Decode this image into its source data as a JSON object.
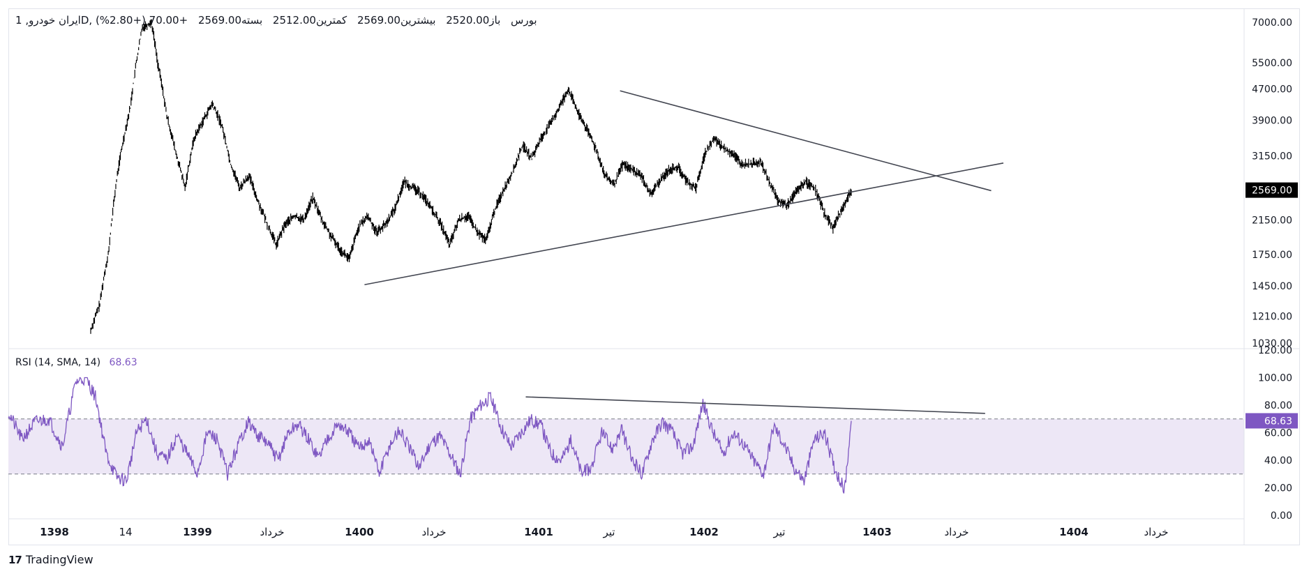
{
  "header": {
    "symbol": "ایران خودرو, 1D, بورس",
    "open_label": "باز",
    "open": "2520.00",
    "high_label": "بیشترین",
    "high": "2569.00",
    "low_label": "کمترین",
    "low": "2512.00",
    "close_label": "بسته",
    "close": "2569.00",
    "change": "+70.00 (+2.80%)"
  },
  "rsi_header": {
    "label": "RSI (14, SMA, 14)",
    "value": "68.63"
  },
  "brand": {
    "logo": "17",
    "name": "TradingView"
  },
  "colors": {
    "candle": "#000000",
    "rsi": "#7e57c2",
    "band": "#ede7f6",
    "trendline": "#434651",
    "price_badge": "#000000",
    "rsi_badge": "#7e57c2"
  },
  "chart_data": [
    {
      "type": "candlestick",
      "scale": "log",
      "price_axis_ticks": [
        "7000.00",
        "5500.00",
        "4700.00",
        "3900.00",
        "3150.00",
        "2150.00",
        "1750.00",
        "1450.00",
        "1210.00",
        "1030.00"
      ],
      "last_price_label": "2569.00",
      "time_axis_labels": [
        {
          "label": "1398",
          "bold": true
        },
        {
          "label": "14",
          "bold": false
        },
        {
          "label": "1399",
          "bold": true
        },
        {
          "label": "خرداد",
          "bold": false
        },
        {
          "label": "1400",
          "bold": true
        },
        {
          "label": "خرداد",
          "bold": false
        },
        {
          "label": "1401",
          "bold": true
        },
        {
          "label": "تیر",
          "bold": false
        },
        {
          "label": "1402",
          "bold": true
        },
        {
          "label": "تیر",
          "bold": false
        },
        {
          "label": "1403",
          "bold": true
        },
        {
          "label": "خرداد",
          "bold": false
        },
        {
          "label": "1404",
          "bold": true
        },
        {
          "label": "خرداد",
          "bold": false
        }
      ],
      "price_path": [
        [
          0,
          1110
        ],
        [
          0.3,
          1300
        ],
        [
          0.6,
          1800
        ],
        [
          0.9,
          2900
        ],
        [
          1.3,
          4200
        ],
        [
          1.7,
          6800
        ],
        [
          2.0,
          7000
        ],
        [
          2.2,
          5500
        ],
        [
          2.5,
          4000
        ],
        [
          2.8,
          3200
        ],
        [
          3.1,
          2600
        ],
        [
          3.4,
          3500
        ],
        [
          3.7,
          3900
        ],
        [
          4.0,
          4300
        ],
        [
          4.3,
          3800
        ],
        [
          4.6,
          3000
        ],
        [
          4.9,
          2600
        ],
        [
          5.2,
          2800
        ],
        [
          5.5,
          2400
        ],
        [
          5.8,
          2100
        ],
        [
          6.1,
          1850
        ],
        [
          6.4,
          2100
        ],
        [
          6.7,
          2200
        ],
        [
          7.0,
          2150
        ],
        [
          7.3,
          2450
        ],
        [
          7.6,
          2150
        ],
        [
          7.9,
          1950
        ],
        [
          8.2,
          1800
        ],
        [
          8.5,
          1700
        ],
        [
          8.8,
          2050
        ],
        [
          9.1,
          2200
        ],
        [
          9.4,
          2000
        ],
        [
          9.7,
          2100
        ],
        [
          10.0,
          2300
        ],
        [
          10.3,
          2700
        ],
        [
          10.6,
          2600
        ],
        [
          10.9,
          2500
        ],
        [
          11.2,
          2300
        ],
        [
          11.5,
          2100
        ],
        [
          11.8,
          1850
        ],
        [
          12.1,
          2150
        ],
        [
          12.4,
          2200
        ],
        [
          12.7,
          2000
        ],
        [
          13.0,
          1900
        ],
        [
          13.3,
          2300
        ],
        [
          13.6,
          2600
        ],
        [
          13.9,
          2900
        ],
        [
          14.2,
          3350
        ],
        [
          14.5,
          3100
        ],
        [
          14.8,
          3500
        ],
        [
          15.1,
          3800
        ],
        [
          15.4,
          4200
        ],
        [
          15.7,
          4700
        ],
        [
          16.0,
          4100
        ],
        [
          16.3,
          3700
        ],
        [
          16.6,
          3300
        ],
        [
          16.9,
          2800
        ],
        [
          17.2,
          2650
        ],
        [
          17.5,
          3000
        ],
        [
          17.8,
          2900
        ],
        [
          18.1,
          2800
        ],
        [
          18.4,
          2500
        ],
        [
          18.7,
          2700
        ],
        [
          19.0,
          2900
        ],
        [
          19.3,
          2950
        ],
        [
          19.6,
          2700
        ],
        [
          19.9,
          2600
        ],
        [
          20.2,
          3200
        ],
        [
          20.5,
          3500
        ],
        [
          20.8,
          3300
        ],
        [
          21.1,
          3200
        ],
        [
          21.4,
          3000
        ],
        [
          21.7,
          3000
        ],
        [
          22.0,
          3050
        ],
        [
          22.3,
          2700
        ],
        [
          22.6,
          2400
        ],
        [
          22.9,
          2350
        ],
        [
          23.2,
          2550
        ],
        [
          23.5,
          2700
        ],
        [
          23.8,
          2600
        ],
        [
          24.1,
          2250
        ],
        [
          24.4,
          2050
        ],
        [
          24.7,
          2300
        ],
        [
          25.0,
          2569
        ]
      ]
    },
    {
      "type": "line",
      "name": "RSI (14, SMA, 14)",
      "ylim": [
        0,
        120
      ],
      "axis_ticks": [
        "120.00",
        "100.00",
        "80.00",
        "60.00",
        "40.00",
        "20.00",
        "0.00"
      ],
      "bands": [
        30,
        70
      ],
      "last_value_label": "68.63",
      "y_path": [
        [
          0,
          75
        ],
        [
          0.4,
          55
        ],
        [
          0.8,
          68
        ],
        [
          1.2,
          70
        ],
        [
          1.6,
          50
        ],
        [
          2.0,
          97
        ],
        [
          2.3,
          100
        ],
        [
          2.6,
          85
        ],
        [
          2.9,
          45
        ],
        [
          3.2,
          28
        ],
        [
          3.5,
          25
        ],
        [
          3.8,
          60
        ],
        [
          4.1,
          70
        ],
        [
          4.4,
          45
        ],
        [
          4.7,
          40
        ],
        [
          5.0,
          58
        ],
        [
          5.3,
          45
        ],
        [
          5.6,
          30
        ],
        [
          5.9,
          60
        ],
        [
          6.2,
          55
        ],
        [
          6.5,
          30
        ],
        [
          6.8,
          50
        ],
        [
          7.1,
          68
        ],
        [
          7.4,
          58
        ],
        [
          7.7,
          52
        ],
        [
          8.0,
          40
        ],
        [
          8.3,
          60
        ],
        [
          8.6,
          66
        ],
        [
          8.9,
          55
        ],
        [
          9.2,
          42
        ],
        [
          9.5,
          58
        ],
        [
          9.8,
          66
        ],
        [
          10.1,
          60
        ],
        [
          10.4,
          48
        ],
        [
          10.7,
          55
        ],
        [
          11.0,
          30
        ],
        [
          11.3,
          50
        ],
        [
          11.6,
          62
        ],
        [
          11.9,
          48
        ],
        [
          12.2,
          35
        ],
        [
          12.5,
          52
        ],
        [
          12.8,
          58
        ],
        [
          13.1,
          45
        ],
        [
          13.4,
          30
        ],
        [
          13.7,
          70
        ],
        [
          14.0,
          80
        ],
        [
          14.3,
          86
        ],
        [
          14.6,
          65
        ],
        [
          14.9,
          50
        ],
        [
          15.2,
          60
        ],
        [
          15.5,
          70
        ],
        [
          15.8,
          65
        ],
        [
          16.1,
          45
        ],
        [
          16.4,
          40
        ],
        [
          16.7,
          55
        ],
        [
          17.0,
          30
        ],
        [
          17.3,
          35
        ],
        [
          17.6,
          60
        ],
        [
          17.9,
          48
        ],
        [
          18.2,
          62
        ],
        [
          18.5,
          40
        ],
        [
          18.8,
          30
        ],
        [
          19.1,
          55
        ],
        [
          19.4,
          68
        ],
        [
          19.7,
          60
        ],
        [
          20.0,
          45
        ],
        [
          20.3,
          50
        ],
        [
          20.6,
          82
        ],
        [
          20.9,
          60
        ],
        [
          21.2,
          45
        ],
        [
          21.5,
          60
        ],
        [
          21.8,
          52
        ],
        [
          22.1,
          40
        ],
        [
          22.4,
          30
        ],
        [
          22.7,
          65
        ],
        [
          23.0,
          52
        ],
        [
          23.3,
          35
        ],
        [
          23.6,
          25
        ],
        [
          23.9,
          55
        ],
        [
          24.2,
          60
        ],
        [
          24.5,
          35
        ],
        [
          24.8,
          18
        ],
        [
          25.0,
          68.63
        ]
      ]
    }
  ]
}
